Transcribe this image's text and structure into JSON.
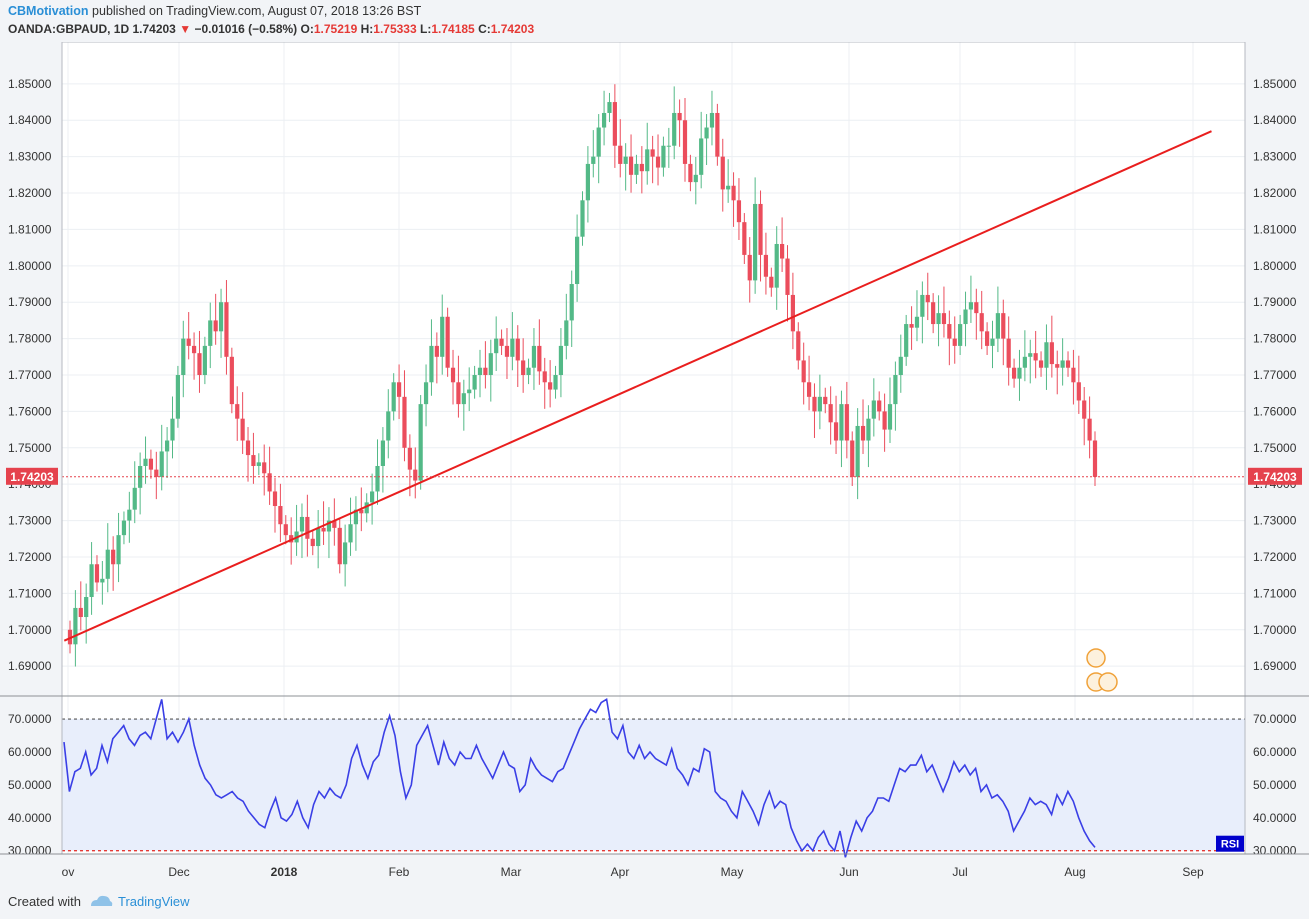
{
  "header": {
    "author": "CBMotivation",
    "published_text": "published on TradingView.com, August 07, 2018 13:26 BST",
    "symbol": "OANDA:GBPAUD, 1D",
    "last": "1.74203",
    "change": "−0.01016 (−0.58%)",
    "o_label": "O:",
    "o_val": "1.75219",
    "h_label": "H:",
    "h_val": "1.75333",
    "l_label": "L:",
    "l_val": "1.74185",
    "c_label": "C:",
    "c_val": "1.74203"
  },
  "footer": {
    "created": "Created with",
    "brand": "TradingView"
  },
  "colors": {
    "up": "#53b987",
    "down": "#eb4d5c",
    "trendline": "#e91e1e",
    "rsi_line": "#3a3fe6",
    "rsi_band": "#e8eefb",
    "price_tag": "#e5424d",
    "rsi_tag": "#0000cc"
  },
  "chart_data": [
    {
      "type": "candlestick",
      "title": "OANDA:GBPAUD, 1D",
      "ylim": [
        1.6818,
        1.8615
      ],
      "price_ticks": [
        "1.69000",
        "1.70000",
        "1.71000",
        "1.72000",
        "1.73000",
        "1.74000",
        "1.75000",
        "1.76000",
        "1.77000",
        "1.78000",
        "1.79000",
        "1.80000",
        "1.81000",
        "1.82000",
        "1.83000",
        "1.84000",
        "1.85000"
      ],
      "x_ticks": [
        "ov",
        "Dec",
        "2018",
        "Feb",
        "Mar",
        "Apr",
        "May",
        "Jun",
        "Jul",
        "Aug",
        "Sep"
      ],
      "last_price_label": "1.74203",
      "last_price": 1.74203,
      "trendline": {
        "from": [
          "2017-10-31",
          1.697
        ],
        "to": [
          "2018-09-06",
          1.837
        ]
      },
      "closes": [
        1.696,
        1.706,
        1.7035,
        1.709,
        1.718,
        1.713,
        1.714,
        1.722,
        1.718,
        1.726,
        1.73,
        1.733,
        1.739,
        1.745,
        1.747,
        1.744,
        1.742,
        1.749,
        1.752,
        1.758,
        1.77,
        1.78,
        1.778,
        1.776,
        1.77,
        1.778,
        1.785,
        1.782,
        1.79,
        1.775,
        1.762,
        1.758,
        1.752,
        1.748,
        1.745,
        1.746,
        1.743,
        1.738,
        1.734,
        1.729,
        1.726,
        1.724,
        1.727,
        1.731,
        1.725,
        1.723,
        1.728,
        1.727,
        1.73,
        1.728,
        1.718,
        1.724,
        1.729,
        1.733,
        1.732,
        1.735,
        1.738,
        1.745,
        1.752,
        1.76,
        1.768,
        1.764,
        1.75,
        1.744,
        1.741,
        1.762,
        1.768,
        1.778,
        1.775,
        1.786,
        1.772,
        1.768,
        1.762,
        1.765,
        1.766,
        1.77,
        1.772,
        1.77,
        1.776,
        1.78,
        1.778,
        1.775,
        1.78,
        1.774,
        1.77,
        1.772,
        1.778,
        1.771,
        1.768,
        1.766,
        1.77,
        1.778,
        1.785,
        1.795,
        1.808,
        1.818,
        1.828,
        1.83,
        1.838,
        1.842,
        1.845,
        1.833,
        1.828,
        1.83,
        1.825,
        1.828,
        1.826,
        1.832,
        1.83,
        1.827,
        1.833,
        1.833,
        1.842,
        1.84,
        1.828,
        1.823,
        1.825,
        1.835,
        1.838,
        1.842,
        1.83,
        1.821,
        1.822,
        1.818,
        1.812,
        1.803,
        1.796,
        1.817,
        1.803,
        1.797,
        1.794,
        1.806,
        1.802,
        1.792,
        1.782,
        1.774,
        1.768,
        1.764,
        1.76,
        1.764,
        1.762,
        1.757,
        1.752,
        1.762,
        1.752,
        1.742,
        1.756,
        1.752,
        1.758,
        1.763,
        1.76,
        1.755,
        1.762,
        1.77,
        1.775,
        1.784,
        1.783,
        1.786,
        1.792,
        1.79,
        1.784,
        1.787,
        1.784,
        1.78,
        1.778,
        1.784,
        1.788,
        1.79,
        1.787,
        1.782,
        1.778,
        1.78,
        1.787,
        1.78,
        1.772,
        1.769,
        1.772,
        1.775,
        1.776,
        1.774,
        1.772,
        1.779,
        1.773,
        1.772,
        1.774,
        1.772,
        1.768,
        1.763,
        1.758,
        1.752,
        1.742
      ],
      "rsi": {
        "label": "RSI",
        "ylim": [
          29,
          77
        ],
        "ticks": [
          "30.0000",
          "40.0000",
          "50.0000",
          "60.0000",
          "70.0000"
        ],
        "upper": 70,
        "lower": 30,
        "values": [
          63,
          48,
          54,
          55,
          60,
          53,
          55,
          62,
          57,
          64,
          66,
          68,
          64,
          62,
          65,
          66,
          64,
          70,
          76,
          64,
          66,
          63,
          66,
          70,
          62,
          56,
          52,
          50,
          47,
          46,
          47,
          48,
          46,
          45,
          42,
          40,
          38,
          37,
          42,
          46,
          40,
          39,
          41,
          45,
          40,
          37,
          44,
          48,
          46,
          49,
          47,
          46,
          50,
          58,
          62,
          56,
          52,
          57,
          59,
          66,
          71,
          65,
          54,
          46,
          50,
          62,
          65,
          68,
          62,
          56,
          63,
          58,
          56,
          60,
          58,
          58,
          62,
          58,
          55,
          52,
          56,
          60,
          56,
          55,
          48,
          50,
          58,
          55,
          53,
          52,
          51,
          54,
          55,
          59,
          63,
          67,
          70,
          73,
          72,
          75,
          76,
          66,
          64,
          68,
          60,
          58,
          62,
          58,
          60,
          58,
          57,
          56,
          61,
          55,
          53,
          50,
          55,
          54,
          61,
          60,
          48,
          46,
          45,
          42,
          40,
          48,
          45,
          42,
          38,
          44,
          48,
          43,
          45,
          44,
          37,
          33,
          30,
          32,
          30,
          34,
          36,
          32,
          30,
          36,
          28,
          34,
          39,
          36,
          40,
          42,
          46,
          46,
          45,
          50,
          55,
          54,
          56,
          56,
          59,
          54,
          56,
          52,
          48,
          52,
          57,
          54,
          56,
          53,
          55,
          48,
          50,
          46,
          47,
          45,
          42,
          36,
          39,
          42,
          46,
          44,
          45,
          44,
          41,
          47,
          44,
          48,
          45,
          40,
          36,
          33,
          31
        ]
      }
    }
  ]
}
